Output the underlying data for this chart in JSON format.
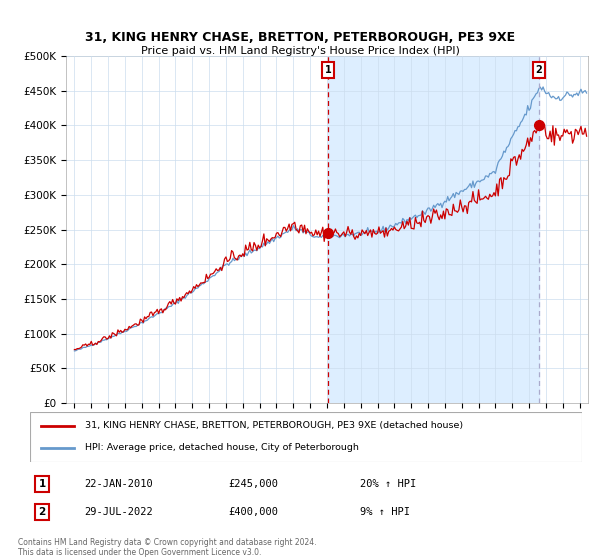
{
  "title": "31, KING HENRY CHASE, BRETTON, PETERBOROUGH, PE3 9XE",
  "subtitle": "Price paid vs. HM Land Registry's House Price Index (HPI)",
  "sale1_date": 2010.06,
  "sale1_price": 245000,
  "sale1_label": "22-JAN-2010",
  "sale1_pct": "20% ↑ HPI",
  "sale2_date": 2022.57,
  "sale2_price": 400000,
  "sale2_label": "29-JUL-2022",
  "sale2_pct": "9% ↑ HPI",
  "legend_property": "31, KING HENRY CHASE, BRETTON, PETERBOROUGH, PE3 9XE (detached house)",
  "legend_hpi": "HPI: Average price, detached house, City of Peterborough",
  "footer": "Contains HM Land Registry data © Crown copyright and database right 2024.\nThis data is licensed under the Open Government Licence v3.0.",
  "property_color": "#cc0000",
  "hpi_color": "#6699cc",
  "shade_color": "#ddeeff",
  "dashed_color": "#cc0000",
  "dashed2_color": "#aaaacc",
  "ylim_min": 0,
  "ylim_max": 500000,
  "xlim_min": 1994.5,
  "xlim_max": 2025.5,
  "yticks": [
    0,
    50000,
    100000,
    150000,
    200000,
    250000,
    300000,
    350000,
    400000,
    450000,
    500000
  ],
  "ytick_labels": [
    "£0",
    "£50K",
    "£100K",
    "£150K",
    "£200K",
    "£250K",
    "£300K",
    "£350K",
    "£400K",
    "£450K",
    "£500K"
  ],
  "background_color": "#ffffff",
  "grid_color": "#ccddee"
}
